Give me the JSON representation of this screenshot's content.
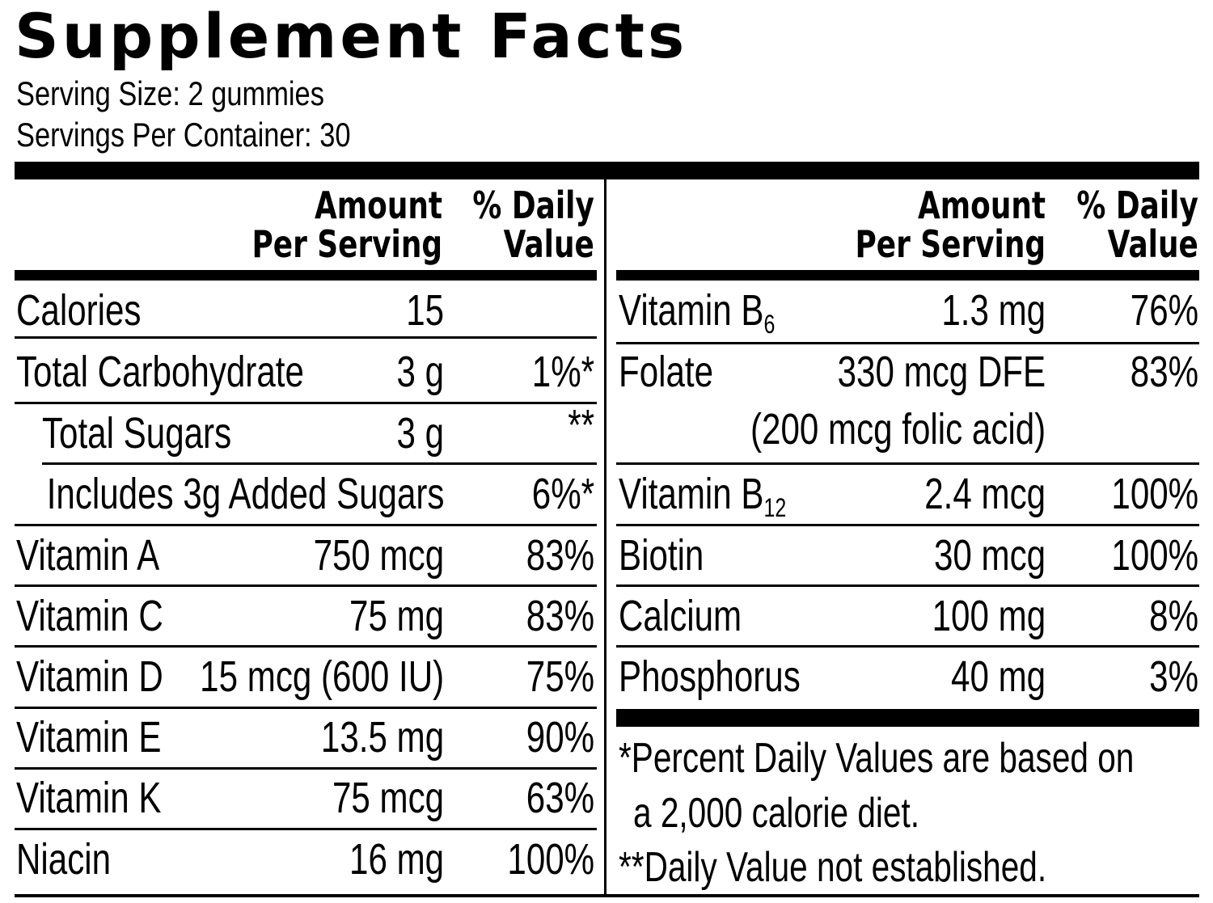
{
  "title": "Supplement Facts",
  "serving_size": "Serving Size:  2 gummies",
  "servings_per_container": "Servings Per Container: 30",
  "headers": {
    "amount_line1": "Amount",
    "amount_line2": "Per Serving",
    "dv_line1": "% Daily",
    "dv_line2": "Value"
  },
  "left_rows": [
    {
      "name": "Calories",
      "amount": "15",
      "dv": ""
    },
    {
      "name": "Total Carbohydrate",
      "amount": "3 g",
      "dv": "1%*"
    },
    {
      "name": "Total Sugars",
      "amount": "3 g",
      "dv": "**"
    },
    {
      "name": "Includes 3g Added Sugars",
      "amount": "",
      "dv": "6%*"
    },
    {
      "name": "Vitamin A",
      "amount": "750 mcg",
      "dv": "83%"
    },
    {
      "name": "Vitamin C",
      "amount": "75 mg",
      "dv": "83%"
    },
    {
      "name": "Vitamin D",
      "amount": "15 mcg (600 IU)",
      "dv": "75%"
    },
    {
      "name": "Vitamin E",
      "amount": "13.5 mg",
      "dv": "90%"
    },
    {
      "name": "Vitamin K",
      "amount": "75 mcg",
      "dv": "63%"
    },
    {
      "name": "Niacin",
      "amount": "16 mg",
      "dv": "100%"
    }
  ],
  "right_rows": [
    {
      "name": "Vitamin B",
      "name_sub": "6",
      "amount": "1.3 mg",
      "dv": "76%"
    },
    {
      "name": "Folate",
      "amount": "330 mcg DFE",
      "amount_line2": "(200 mcg folic acid)",
      "dv": "83%"
    },
    {
      "name": "Vitamin B",
      "name_sub": "12",
      "amount": "2.4 mcg",
      "dv": "100%"
    },
    {
      "name": "Biotin",
      "amount": "30 mcg",
      "dv": "100%"
    },
    {
      "name": "Calcium",
      "amount": "100 mg",
      "dv": "8%"
    },
    {
      "name": "Phosphorus",
      "amount": "40 mg",
      "dv": "3%"
    }
  ],
  "footnotes": {
    "line1": "*Percent Daily Values are based on",
    "line2": "a 2,000 calorie diet.",
    "line3": "**Daily Value not established."
  }
}
